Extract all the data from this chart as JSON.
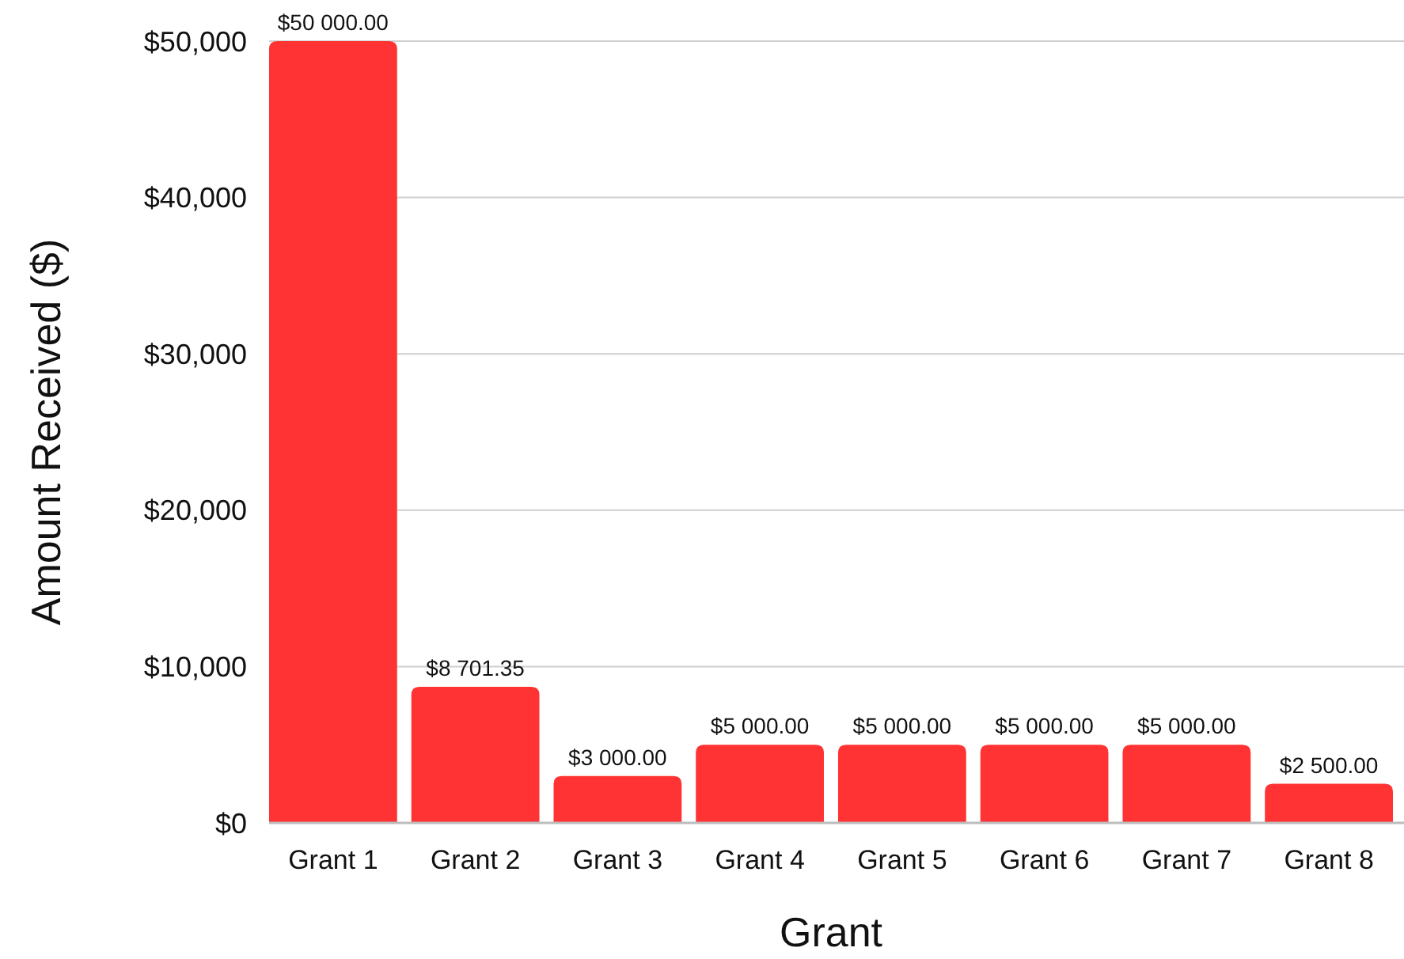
{
  "chart_data": {
    "type": "bar",
    "xlabel": "Grant",
    "ylabel": "Amount Received ($)",
    "categories": [
      "Grant 1",
      "Grant 2",
      "Grant 3",
      "Grant 4",
      "Grant 5",
      "Grant 6",
      "Grant 7",
      "Grant 8"
    ],
    "values": [
      50000,
      8701.35,
      3000,
      5000,
      5000,
      5000,
      5000,
      2500
    ],
    "value_labels": [
      "$50 000.00",
      "$8 701.35",
      "$3 000.00",
      "$5 000.00",
      "$5 000.00",
      "$5 000.00",
      "$5 000.00",
      "$2 500.00"
    ],
    "color": "#ff3333",
    "ylim": [
      0,
      50000
    ],
    "yticks": [
      {
        "value": 0,
        "label": "$0"
      },
      {
        "value": 10000,
        "label": "$10,000"
      },
      {
        "value": 20000,
        "label": "$20,000"
      },
      {
        "value": 30000,
        "label": "$30,000"
      },
      {
        "value": 40000,
        "label": "$40,000"
      },
      {
        "value": 50000,
        "label": "$50,000"
      }
    ],
    "grid": "y"
  }
}
